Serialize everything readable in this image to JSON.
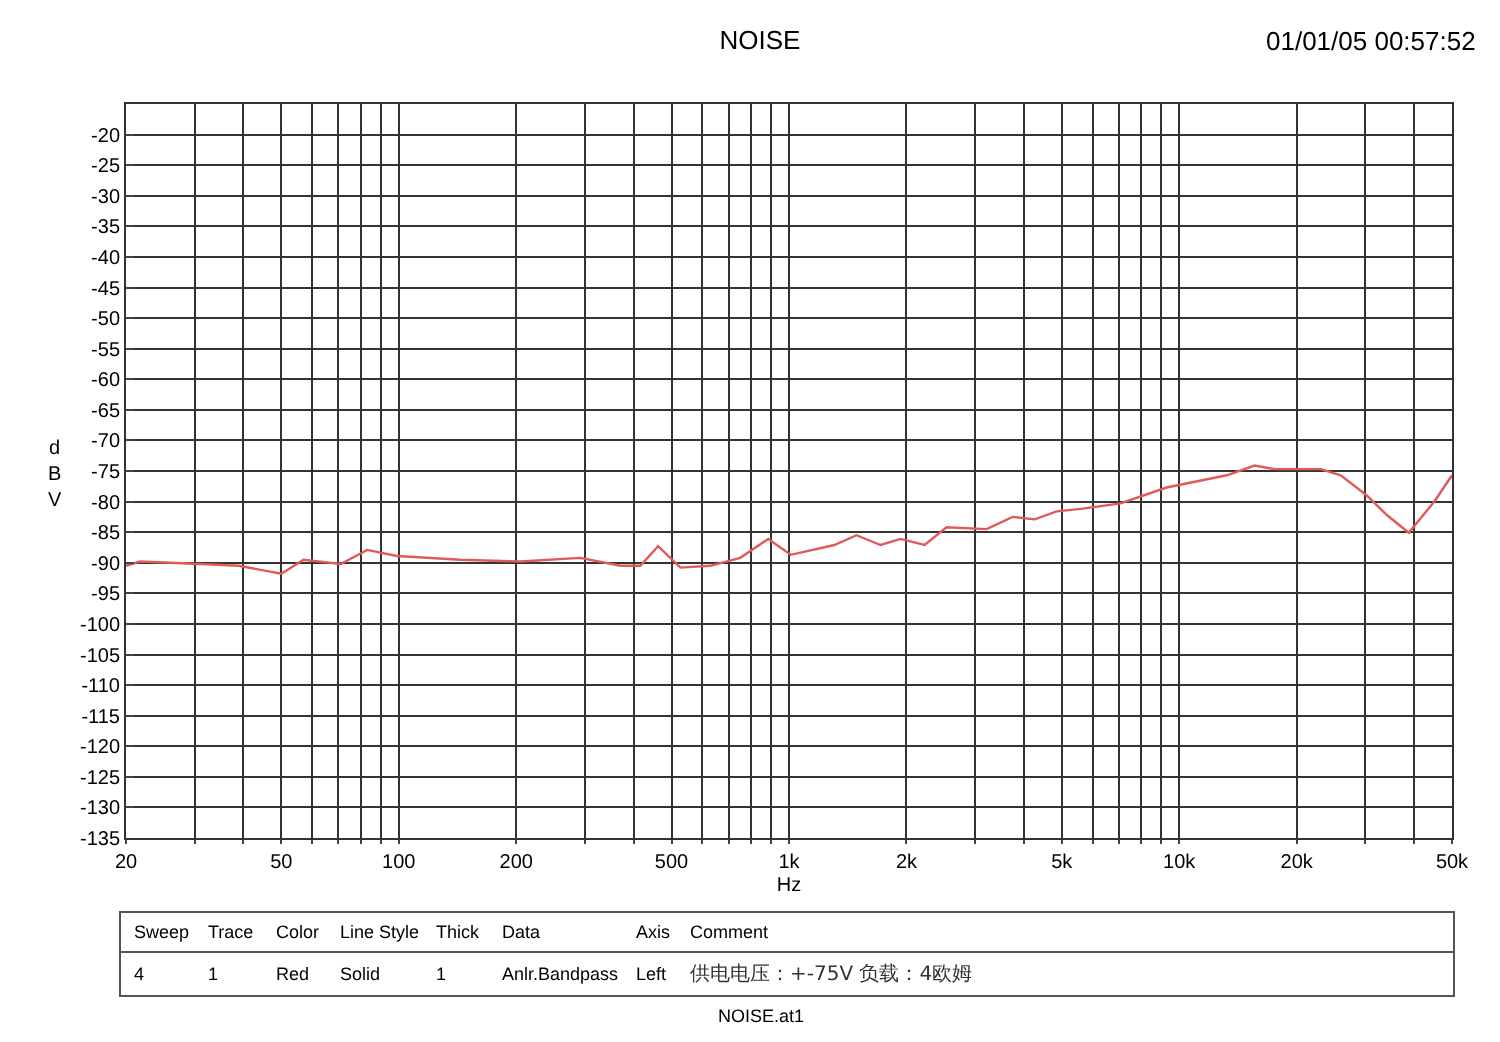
{
  "chart_data": {
    "type": "line",
    "title": "NOISE",
    "xlabel": "Hz",
    "ylabel": "dBV",
    "annotations": [
      "01/01/05 00:57:52",
      "Sweep",
      "Trace",
      "Color",
      "Line Style",
      "Thick",
      "Data",
      "Axis",
      "Comment",
      "4",
      "1",
      "Red",
      "Solid",
      "1",
      "Anlr.Bandpass",
      "Left",
      "供电电压：+-75V 负载：4欧姆",
      "NOISE.at1"
    ],
    "log": "x",
    "grid": true,
    "line_style": "solid",
    "marker": "none",
    "xlim": [
      20,
      50000
    ],
    "ylim": [
      -135,
      -15
    ],
    "xticks": [
      20,
      {
        "value": 30,
        "label": null
      },
      {
        "value": 40,
        "label": null
      },
      50,
      {
        "value": 60,
        "label": null
      },
      {
        "value": 70,
        "label": null
      },
      {
        "value": 80,
        "label": null
      },
      {
        "value": 90,
        "label": null
      },
      100,
      200,
      {
        "value": 300,
        "label": null
      },
      {
        "value": 400,
        "label": null
      },
      500,
      {
        "value": 600,
        "label": null
      },
      {
        "value": 700,
        "label": null
      },
      {
        "value": 800,
        "label": null
      },
      {
        "value": 900,
        "label": null
      },
      {
        "value": 1000,
        "label": "1k"
      },
      {
        "value": 2000,
        "label": "2k"
      },
      {
        "value": 3000,
        "label": null
      },
      {
        "value": 4000,
        "label": null
      },
      {
        "value": 5000,
        "label": "5k"
      },
      {
        "value": 6000,
        "label": null
      },
      {
        "value": 7000,
        "label": null
      },
      {
        "value": 8000,
        "label": null
      },
      {
        "value": 9000,
        "label": null
      },
      {
        "value": 10000,
        "label": "10k"
      },
      {
        "value": 20000,
        "label": "20k"
      },
      {
        "value": 30000,
        "label": null
      },
      {
        "value": 40000,
        "label": null
      },
      {
        "value": 50000,
        "label": "50k"
      }
    ],
    "yticks": [
      {
        "value": -15,
        "label": null
      },
      -20,
      -25,
      -30,
      -35,
      -40,
      -45,
      -50,
      -55,
      -60,
      -65,
      -70,
      -75,
      -80,
      -85,
      -90,
      -95,
      -100,
      -105,
      -110,
      -115,
      -120,
      -125,
      -130,
      -135
    ],
    "x": [
      20,
      21.7,
      31,
      39,
      50,
      57,
      71,
      83,
      99,
      144,
      205,
      292,
      370,
      416,
      462,
      527,
      628,
      750,
      885,
      1010,
      1307,
      1489,
      1716,
      1932,
      2225,
      2534,
      3210,
      3740,
      4260,
      4850,
      5590,
      7070,
      9280,
      13240,
      15600,
      17570,
      23050,
      25940,
      30240,
      34040,
      38740,
      45160,
      50000
    ],
    "series": [
      {
        "color": "#e05a5a",
        "values": [
          -90.5,
          -89.8,
          -90.2,
          -90.5,
          -91.8,
          -89.5,
          -90.2,
          -87.9,
          -88.9,
          -89.5,
          -89.8,
          -89.2,
          -90.5,
          -90.5,
          -87.3,
          -90.8,
          -90.5,
          -89.2,
          -86.1,
          -88.7,
          -87.1,
          -85.5,
          -87.1,
          -86.1,
          -87.1,
          -84.2,
          -84.5,
          -82.5,
          -82.9,
          -81.6,
          -81.2,
          -80.3,
          -77.7,
          -75.7,
          -74.1,
          -74.7,
          -74.7,
          -75.7,
          -79,
          -82.2,
          -85.1,
          -79.9,
          -75.7
        ]
      }
    ]
  }
}
